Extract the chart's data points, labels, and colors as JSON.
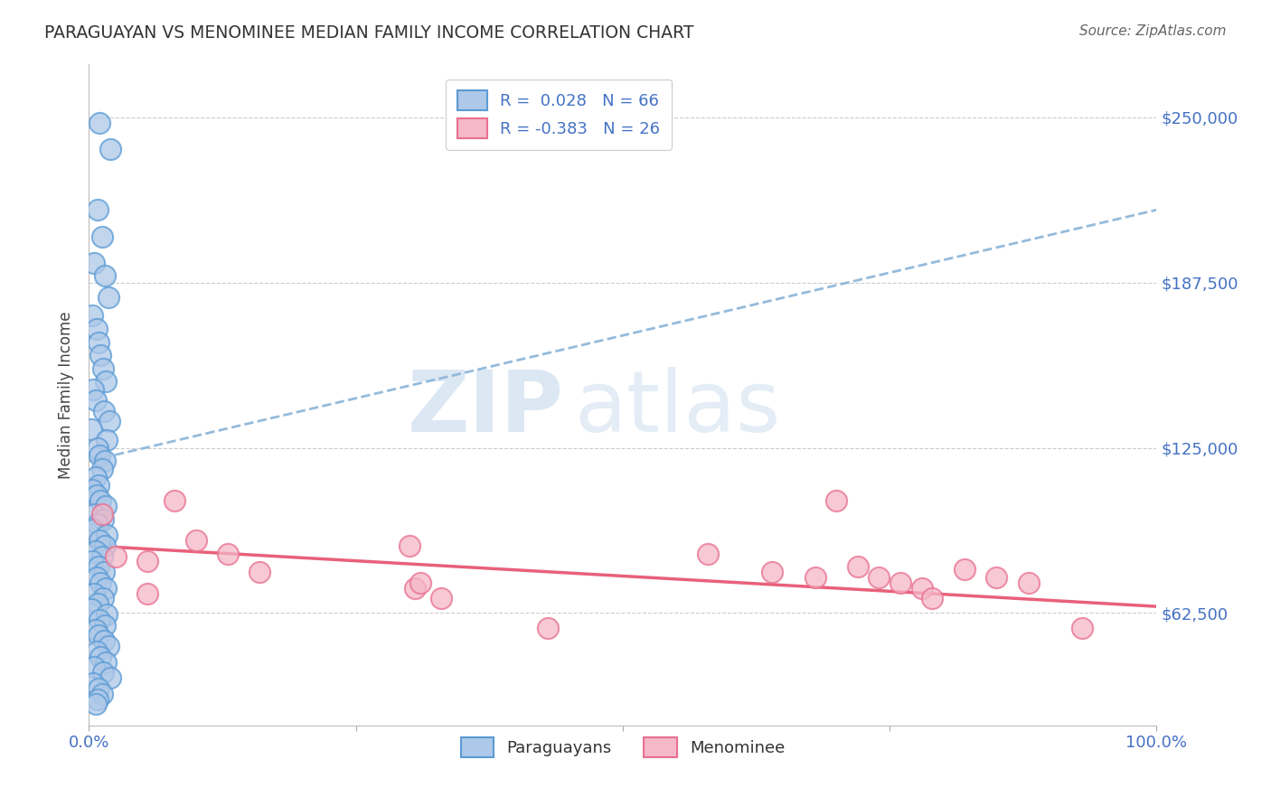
{
  "title": "PARAGUAYAN VS MENOMINEE MEDIAN FAMILY INCOME CORRELATION CHART",
  "source": "Source: ZipAtlas.com",
  "ylabel": "Median Family Income",
  "xlim": [
    0.0,
    1.0
  ],
  "ylim": [
    20000,
    270000
  ],
  "yticks": [
    62500,
    125000,
    187500,
    250000
  ],
  "ytick_labels": [
    "$62,500",
    "$125,000",
    "$187,500",
    "$250,000"
  ],
  "blue_R": "0.028",
  "blue_N": "66",
  "pink_R": "-0.383",
  "pink_N": "26",
  "blue_fill": "#adc8e8",
  "blue_edge": "#5b9bd5",
  "pink_fill": "#f5b8c8",
  "pink_edge": "#e87090",
  "blue_line_color": "#8ab4d8",
  "pink_line_color": "#e8607a",
  "legend_label_blue": "Paraguayans",
  "legend_label_pink": "Menominee",
  "background_color": "#ffffff",
  "grid_color": "#cccccc",
  "axis_color": "#4472c4",
  "title_color": "#333333",
  "blue_scatter_x": [
    0.01,
    0.02,
    0.008,
    0.012,
    0.005,
    0.015,
    0.018,
    0.003,
    0.007,
    0.009,
    0.011,
    0.013,
    0.016,
    0.004,
    0.006,
    0.014,
    0.019,
    0.002,
    0.017,
    0.008,
    0.01,
    0.015,
    0.012,
    0.006,
    0.009,
    0.003,
    0.007,
    0.011,
    0.016,
    0.005,
    0.013,
    0.008,
    0.004,
    0.017,
    0.01,
    0.015,
    0.006,
    0.012,
    0.003,
    0.009,
    0.014,
    0.007,
    0.011,
    0.016,
    0.005,
    0.013,
    0.008,
    0.002,
    0.017,
    0.01,
    0.015,
    0.006,
    0.009,
    0.014,
    0.018,
    0.007,
    0.011,
    0.016,
    0.005,
    0.013,
    0.02,
    0.004,
    0.009,
    0.012,
    0.008,
    0.006
  ],
  "blue_scatter_y": [
    248000,
    238000,
    215000,
    205000,
    195000,
    190000,
    182000,
    175000,
    170000,
    165000,
    160000,
    155000,
    150000,
    147000,
    143000,
    139000,
    135000,
    132000,
    128000,
    125000,
    122000,
    120000,
    117000,
    114000,
    111000,
    109000,
    107000,
    105000,
    103000,
    100000,
    98000,
    96000,
    94000,
    92000,
    90000,
    88000,
    86000,
    84000,
    82000,
    80000,
    78000,
    76000,
    74000,
    72000,
    70000,
    68000,
    66000,
    64000,
    62000,
    60000,
    58000,
    56000,
    54000,
    52000,
    50000,
    48000,
    46000,
    44000,
    42000,
    40000,
    38000,
    36000,
    34000,
    32000,
    30000,
    28000
  ],
  "pink_scatter_x": [
    0.012,
    0.025,
    0.055,
    0.055,
    0.08,
    0.1,
    0.13,
    0.16,
    0.3,
    0.305,
    0.31,
    0.33,
    0.43,
    0.58,
    0.64,
    0.68,
    0.7,
    0.72,
    0.74,
    0.76,
    0.78,
    0.79,
    0.82,
    0.85,
    0.88,
    0.93
  ],
  "pink_scatter_y": [
    100000,
    84000,
    82000,
    70000,
    105000,
    90000,
    85000,
    78000,
    88000,
    72000,
    74000,
    68000,
    57000,
    85000,
    78000,
    76000,
    105000,
    80000,
    76000,
    74000,
    72000,
    68000,
    79000,
    76000,
    74000,
    57000
  ]
}
